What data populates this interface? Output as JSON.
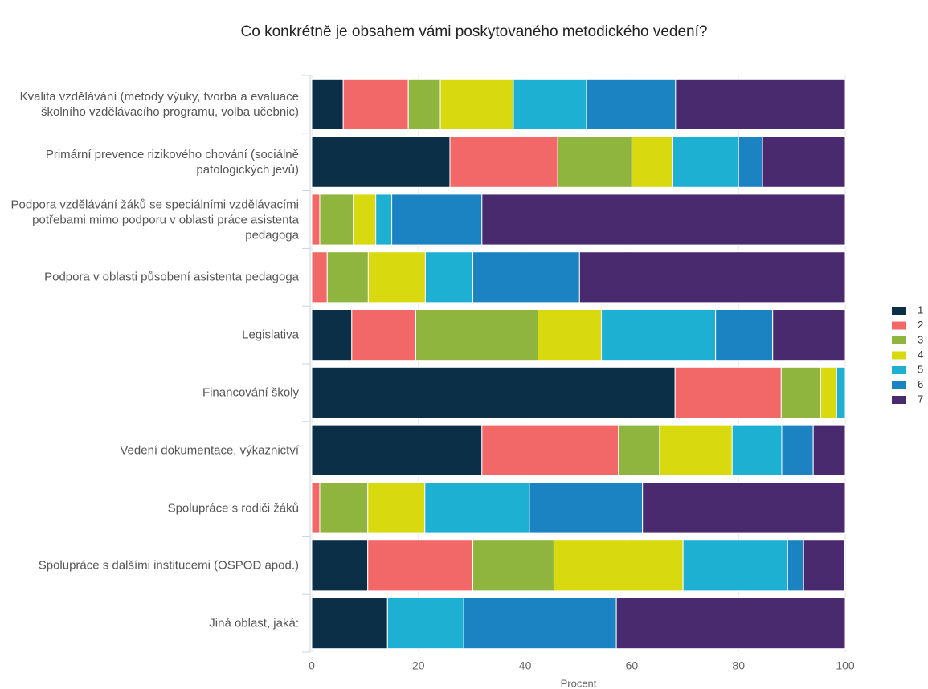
{
  "chart_data": {
    "type": "stacked_bar_horizontal",
    "title": "Co konkrétně je obsahem vámi poskytovaného metodického vedení?",
    "x_label": "Procent",
    "categories": [
      "Kvalita vzdělávání (metody výuky, tvorba a evaluace školního vzdělávacího programu, volba učebnic)",
      "Primární prevence rizikového chování (sociálně patologických jevů)",
      "Podpora vzdělávání žáků se speciálními vzdělávacími potřebami mimo podporu v oblasti práce asistenta pedagoga",
      "Podpora v oblasti působení asistenta pedagoga",
      "Legislativa",
      "Financování školy",
      "Vedení dokumentace, výkaznictví",
      "Spolupráce s rodiči žáků",
      "Spolupráce s dalšími institucemi (OSPOD apod.)",
      "Jiná oblast, jaká:"
    ],
    "series": [
      {
        "name": "1",
        "color": "#0b2f46",
        "values": [
          5.9,
          25.9,
          0,
          0,
          7.5,
          68.1,
          31.9,
          0,
          10.5,
          14.2
        ]
      },
      {
        "name": "2",
        "color": "#f26868",
        "values": [
          12.2,
          20.2,
          1.5,
          2.9,
          12.0,
          19.9,
          25.6,
          1.5,
          19.7,
          0
        ]
      },
      {
        "name": "3",
        "color": "#8fb53f",
        "values": [
          6.0,
          13.9,
          6.3,
          7.7,
          22.9,
          7.4,
          7.7,
          9.0,
          15.2,
          0
        ]
      },
      {
        "name": "4",
        "color": "#d9d90f",
        "values": [
          13.7,
          7.7,
          4.2,
          10.7,
          11.9,
          3.0,
          13.6,
          10.7,
          24.2,
          0
        ]
      },
      {
        "name": "5",
        "color": "#1db0d2",
        "values": [
          13.7,
          12.3,
          3.0,
          8.9,
          21.4,
          1.6,
          9.3,
          19.6,
          19.6,
          14.3
        ]
      },
      {
        "name": "6",
        "color": "#1b83c1",
        "values": [
          16.7,
          4.5,
          16.9,
          20.0,
          10.7,
          0,
          5.9,
          21.2,
          3.0,
          28.6
        ]
      },
      {
        "name": "7",
        "color": "#4a2a6e",
        "values": [
          31.8,
          15.5,
          68.1,
          49.8,
          13.6,
          0,
          6.0,
          38.0,
          7.7,
          42.9
        ]
      }
    ],
    "xlim": [
      0,
      100
    ],
    "xticks": [
      0,
      20,
      40,
      60,
      80,
      100
    ],
    "grid": true,
    "legend": "right"
  }
}
